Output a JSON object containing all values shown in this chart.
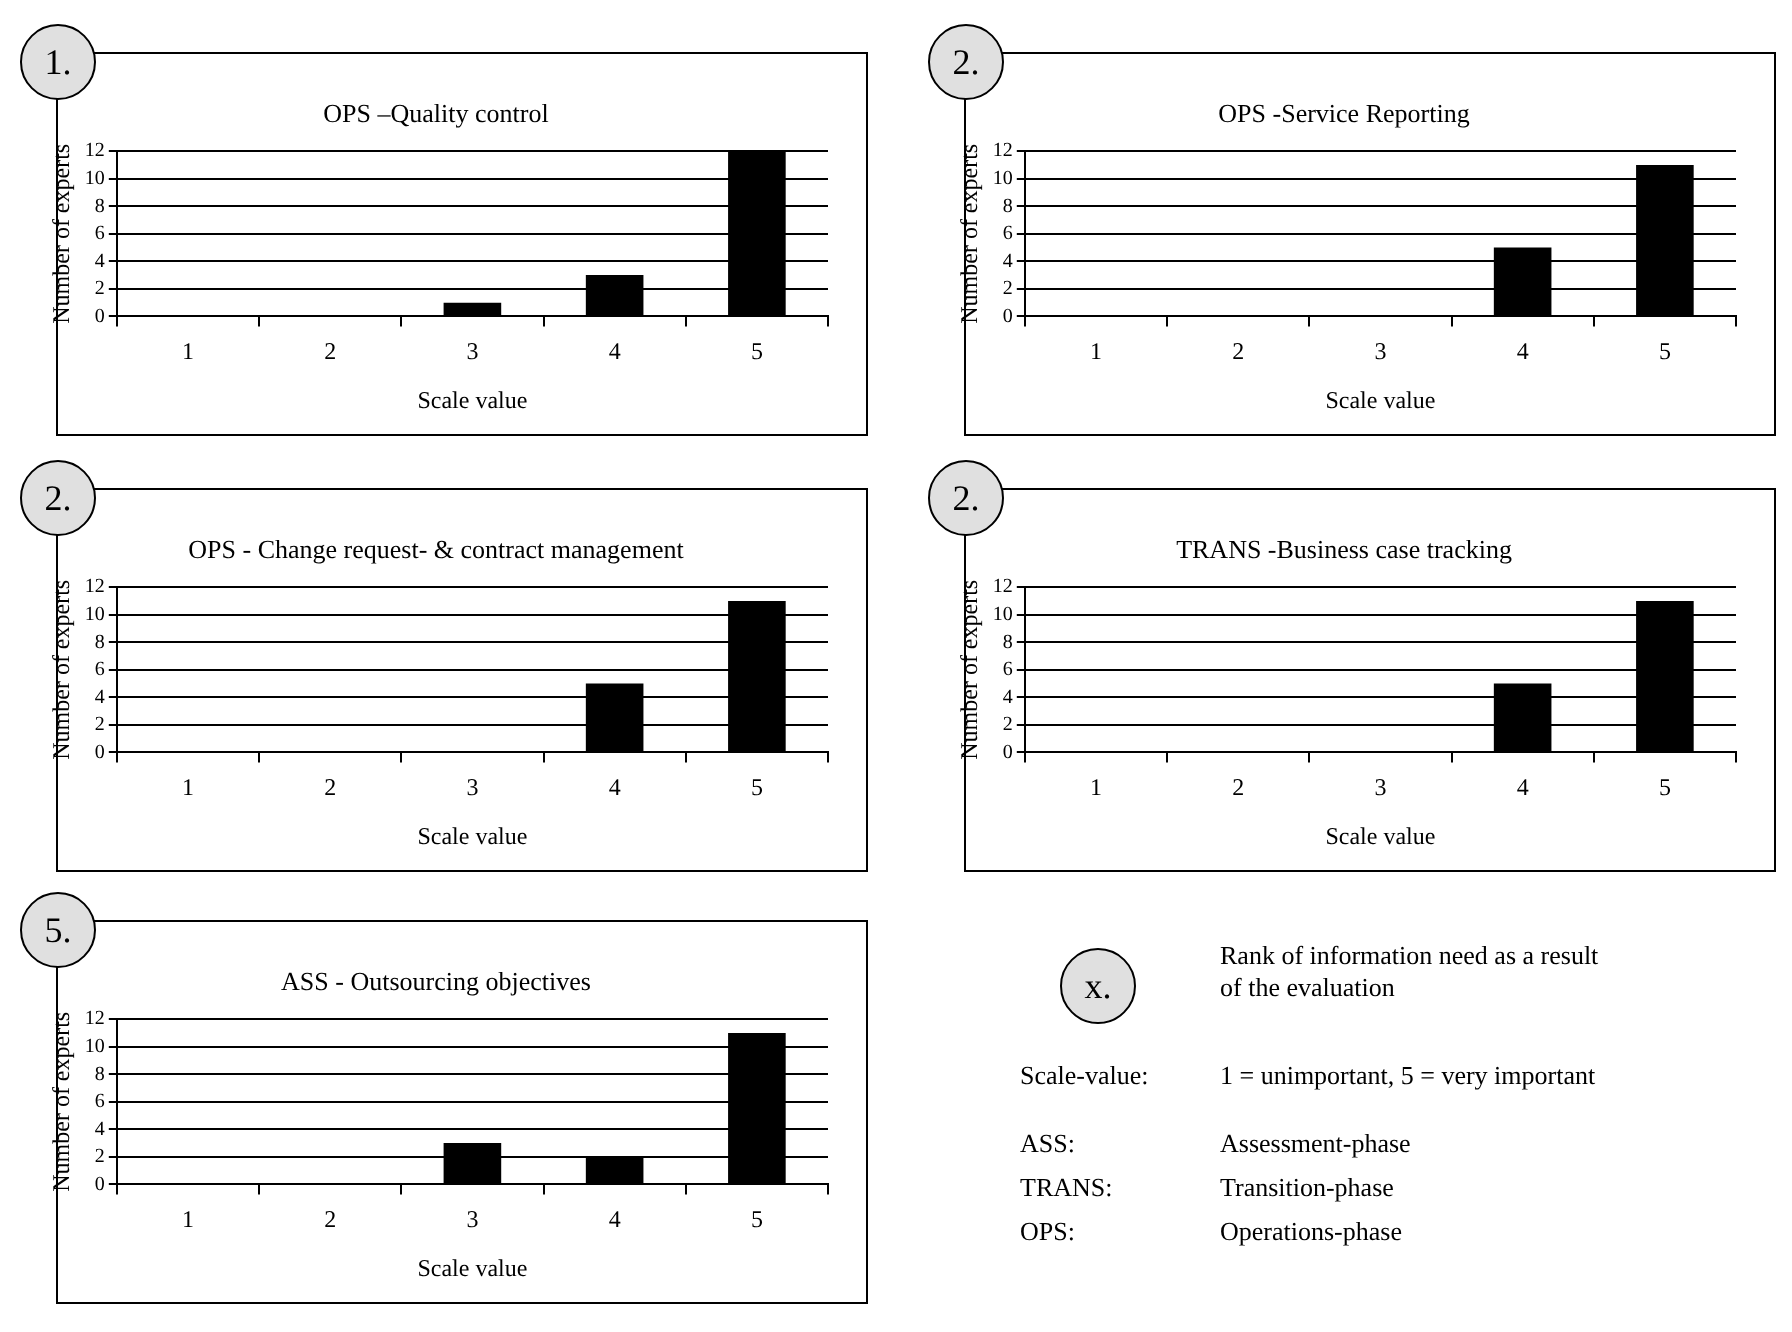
{
  "chart_data": [
    {
      "type": "bar",
      "title": "OPS –Quality control",
      "annotations": [
        "1."
      ],
      "xlabel": "Scale value",
      "ylabel": "Number of experts",
      "categories": [
        "1",
        "2",
        "3",
        "4",
        "5"
      ],
      "values": [
        0,
        0,
        1,
        3,
        12
      ],
      "color": "#000000",
      "ylim": [
        0,
        12
      ],
      "yticks": [
        0,
        2,
        4,
        6,
        8,
        10,
        12
      ],
      "grid": "y"
    },
    {
      "type": "bar",
      "title": "OPS -Service Reporting",
      "annotations": [
        "2."
      ],
      "xlabel": "Scale value",
      "ylabel": "Number of experts",
      "categories": [
        "1",
        "2",
        "3",
        "4",
        "5"
      ],
      "values": [
        0,
        0,
        0,
        5,
        11
      ],
      "color": "#000000",
      "ylim": [
        0,
        12
      ],
      "yticks": [
        0,
        2,
        4,
        6,
        8,
        10,
        12
      ],
      "grid": "y"
    },
    {
      "type": "bar",
      "title": "OPS - Change request- & contract management",
      "annotations": [
        "2."
      ],
      "xlabel": "Scale value",
      "ylabel": "Number of experts",
      "categories": [
        "1",
        "2",
        "3",
        "4",
        "5"
      ],
      "values": [
        0,
        0,
        0,
        5,
        11
      ],
      "color": "#000000",
      "ylim": [
        0,
        12
      ],
      "yticks": [
        0,
        2,
        4,
        6,
        8,
        10,
        12
      ],
      "grid": "y"
    },
    {
      "type": "bar",
      "title": "TRANS -Business case tracking",
      "annotations": [
        "2."
      ],
      "xlabel": "Scale value",
      "ylabel": "Number of experts",
      "categories": [
        "1",
        "2",
        "3",
        "4",
        "5"
      ],
      "values": [
        0,
        0,
        0,
        5,
        11
      ],
      "color": "#000000",
      "ylim": [
        0,
        12
      ],
      "yticks": [
        0,
        2,
        4,
        6,
        8,
        10,
        12
      ],
      "grid": "y"
    },
    {
      "type": "bar",
      "title": "ASS - Outsourcing objectives",
      "annotations": [
        "5."
      ],
      "xlabel": "Scale value",
      "ylabel": "Number of experts",
      "categories": [
        "1",
        "2",
        "3",
        "4",
        "5"
      ],
      "values": [
        0,
        0,
        3,
        2,
        11
      ],
      "color": "#000000",
      "ylim": [
        0,
        12
      ],
      "yticks": [
        0,
        2,
        4,
        6,
        8,
        10,
        12
      ],
      "grid": "y"
    },
    {
      "type": "other",
      "annotations": [
        "x.",
        "Rank of information need as a result of the evaluation",
        "Scale-value:",
        "1 = unimportant, 5 = very important",
        "ASS:",
        "Assessment-phase",
        "TRANS:",
        "Transition-phase",
        "OPS:",
        "Operations-phase"
      ]
    }
  ]
}
